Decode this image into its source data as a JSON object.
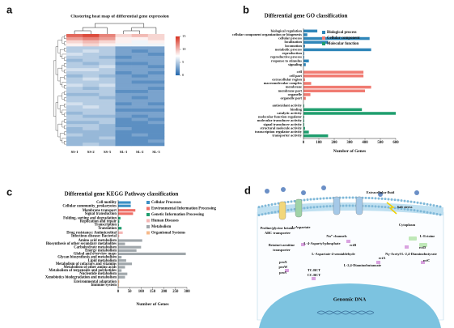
{
  "chart_data": [
    {
      "type": "heatmap",
      "panel_label": "a",
      "title": "Clustering heat map of differential gene expression",
      "columns": [
        "SS-1",
        "SS-2",
        "SS-3",
        "SL-1",
        "SL-2",
        "SL-3"
      ],
      "values": [
        [
          13,
          14,
          12,
          9,
          10,
          9
        ],
        [
          11,
          12,
          11,
          8,
          8,
          9
        ],
        [
          9,
          10,
          9,
          8,
          7,
          8
        ],
        [
          8,
          9,
          8,
          7,
          7,
          7
        ],
        [
          5,
          5,
          5,
          3,
          3,
          3
        ],
        [
          5,
          6,
          5,
          3,
          2,
          3
        ],
        [
          6,
          5,
          5,
          3,
          3,
          2
        ],
        [
          5,
          5,
          4,
          2,
          3,
          3
        ],
        [
          4,
          5,
          5,
          3,
          3,
          3
        ],
        [
          5,
          4,
          5,
          2,
          2,
          3
        ],
        [
          5,
          5,
          6,
          3,
          3,
          2
        ],
        [
          6,
          6,
          5,
          3,
          3,
          3
        ],
        [
          5,
          5,
          5,
          2,
          3,
          2
        ],
        [
          4,
          5,
          4,
          3,
          2,
          3
        ],
        [
          5,
          6,
          5,
          3,
          3,
          3
        ],
        [
          5,
          5,
          5,
          3,
          2,
          2
        ],
        [
          6,
          5,
          6,
          3,
          3,
          3
        ],
        [
          5,
          4,
          5,
          3,
          3,
          2
        ],
        [
          5,
          5,
          5,
          2,
          2,
          3
        ],
        [
          4,
          4,
          5,
          3,
          3,
          3
        ],
        [
          5,
          5,
          4,
          3,
          2,
          3
        ],
        [
          5,
          5,
          5,
          3,
          3,
          3
        ],
        [
          6,
          5,
          5,
          2,
          3,
          2
        ],
        [
          5,
          6,
          5,
          3,
          3,
          3
        ],
        [
          5,
          5,
          5,
          2,
          2,
          2
        ],
        [
          4,
          5,
          5,
          3,
          3,
          3
        ],
        [
          5,
          4,
          4,
          3,
          2,
          3
        ],
        [
          5,
          5,
          5,
          2,
          3,
          2
        ],
        [
          4,
          4,
          5,
          2,
          2,
          3
        ],
        [
          5,
          5,
          4,
          2,
          2,
          2
        ],
        [
          4,
          5,
          4,
          3,
          2,
          2
        ],
        [
          4,
          4,
          4,
          2,
          2,
          2
        ],
        [
          5,
          4,
          4,
          2,
          3,
          2
        ],
        [
          4,
          4,
          5,
          2,
          2,
          2
        ],
        [
          4,
          4,
          4,
          2,
          2,
          3
        ],
        [
          4,
          5,
          4,
          2,
          2,
          2
        ]
      ],
      "zlim": [
        0,
        15
      ],
      "zticks": [
        0,
        5,
        10,
        15
      ],
      "colors": [
        "#2166ac",
        "#ffffff",
        "#d7301f"
      ]
    },
    {
      "type": "bar",
      "horizontal": true,
      "panel_label": "b",
      "title": "Differential gene GO classification",
      "series": [
        {
          "name": "Biological process",
          "color": "#2f86b9",
          "categories": [
            "biological regulation",
            "cellular component organization or biogenesis",
            "cellular process",
            "localization",
            "locomotion",
            "metabolic process",
            "reproduction",
            "reproductive process",
            "response to stimulus",
            "signaling"
          ],
          "values": [
            90,
            25,
            430,
            160,
            10,
            440,
            5,
            5,
            35,
            15
          ]
        },
        {
          "name": "Cellular component",
          "color": "#f07b72",
          "categories": [
            "cell",
            "cell part",
            "extracellular region",
            "macromolecular complex",
            "membrane",
            "membrane part",
            "organelle",
            "organelle part"
          ],
          "values": [
            390,
            390,
            10,
            50,
            440,
            400,
            45,
            15
          ]
        },
        {
          "name": "Molecular function",
          "color": "#1f9e6e",
          "categories": [
            "antioxidant activity",
            "binding",
            "catalytic activity",
            "molecular function regulator",
            "molecular transducer activity",
            "signal transducer activity",
            "structural molecule activity",
            "transcription regulator activity",
            "transporter activity"
          ],
          "values": [
            5,
            380,
            600,
            5,
            5,
            5,
            10,
            35,
            160
          ]
        }
      ],
      "xlim": [
        0,
        600
      ],
      "xticks": [
        0,
        100,
        200,
        300,
        400,
        500,
        600
      ],
      "xlabel": "Number of Genes",
      "legend": "top-right"
    },
    {
      "type": "bar",
      "horizontal": true,
      "panel_label": "c",
      "title": "Differential gene KEGG Pathway classification",
      "series": [
        {
          "name": "Cellular Processes",
          "color": "#3a8fc4",
          "categories": [
            "Cell motility",
            "Cellular community_prokaryotes"
          ],
          "values": [
            55,
            55
          ]
        },
        {
          "name": "Environmental Information Processing",
          "color": "#ee6e66",
          "categories": [
            "Membrane transport",
            "Signal transduction"
          ],
          "values": [
            75,
            65
          ]
        },
        {
          "name": "Genetic Information Processing",
          "color": "#1f9e6e",
          "categories": [
            "Folding, sorting and degradation",
            "Replication and repair",
            "Transcription",
            "Translation"
          ],
          "values": [
            10,
            5,
            3,
            15
          ]
        },
        {
          "name": "Human Diseases",
          "color": "#f4b6b4",
          "categories": [
            "Drug resistance: Antimicrobial",
            "Infectious disease: Bacterial"
          ],
          "values": [
            20,
            5
          ]
        },
        {
          "name": "Metabolism",
          "color": "#a0a7ab",
          "categories": [
            "Amino acid metabolism",
            "Biosynthesis of other secondary metabolites",
            "Carbohydrate metabolism",
            "Energy metabolism",
            "Global and overview maps",
            "Glycan biosynthesis and metabolism",
            "Lipid metabolism",
            "Metabolism of cofactors and vitamins",
            "Metabolism of other amino acids",
            "Metabolism of terpenoids and polyketides",
            "Nucleotide metabolism",
            "Xenobiotics biodegradation and metabolism"
          ],
          "values": [
            105,
            30,
            100,
            80,
            295,
            15,
            35,
            60,
            30,
            15,
            40,
            30
          ]
        },
        {
          "name": "Organismal Systems",
          "color": "#f6b98a",
          "categories": [
            "Environmental adaptation",
            "Immune system"
          ],
          "values": [
            5,
            3
          ]
        }
      ],
      "xlim": [
        0,
        300
      ],
      "xticks": [
        0,
        50,
        100,
        150,
        200,
        250,
        300
      ],
      "xlabel": "Number of Genes",
      "legend": "top-right"
    }
  ],
  "diagram": {
    "panel_label": "d",
    "labels": [
      "Extracellular fluid",
      "Salt stress",
      "Proline/glycine betaine",
      "ABC transporter",
      "L-Aspartate",
      "Na⁺ channels",
      "Cytoplasm",
      "L-Ectoine",
      "Betaine/carnitine",
      "transporter",
      "L-4-Aspartyl-phosphate",
      "ectB",
      "L-Aspartate-4-semialdehyde",
      "ectA",
      "L-2,4-Diaminobutanoate",
      "ectD",
      "Nγ-Acetyl-L-2,4-Diaminobutyrate",
      "ectC",
      "proX",
      "proW",
      "proV",
      "TC.BCT",
      "CC.BCT",
      "Genomic DNA"
    ]
  }
}
